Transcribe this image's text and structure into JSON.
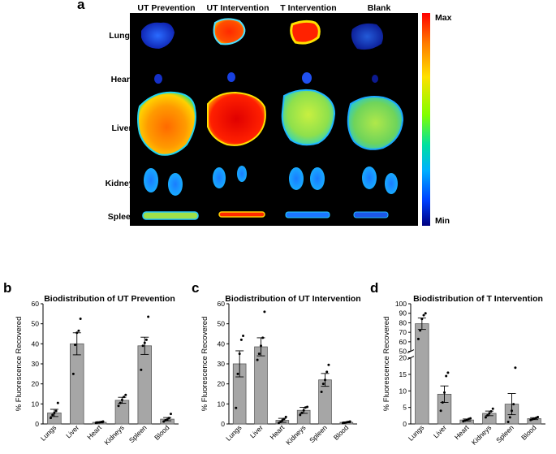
{
  "figure": {
    "panel_a": {
      "letter": "a",
      "columns": [
        "UT Prevention",
        "UT Intervention",
        "T Intervention",
        "Blank"
      ],
      "rows": [
        "Lungs",
        "Heart",
        "Liver",
        "Kidneys",
        "Spleen"
      ],
      "colorbar": {
        "max_label": "Max",
        "min_label": "Min"
      }
    },
    "colors": {
      "bar_fill": "#a6a6a6",
      "bar_stroke": "#5a5a5a",
      "point": "#000000"
    }
  },
  "chart_data": [
    {
      "letter": "b",
      "type": "bar",
      "title": "Biodistribution of UT Prevention",
      "ylabel": "% Fluorescence Recovered",
      "categories": [
        "Lungs",
        "Liver",
        "Heart",
        "Kidneys",
        "Spleen",
        "Blood"
      ],
      "values": [
        5.5,
        40,
        0.8,
        11.8,
        39,
        2.4
      ],
      "errors": [
        1.8,
        5.5,
        0.3,
        1.5,
        4.3,
        0.8
      ],
      "points": [
        [
          3,
          4.5,
          5.5,
          6.5,
          10.5
        ],
        [
          25,
          39.5,
          45.5,
          46.5,
          52.5
        ],
        [
          0.5,
          0.7,
          0.8,
          1,
          1.2
        ],
        [
          9,
          10.5,
          12,
          13.5,
          14.5
        ],
        [
          27,
          39,
          40.5,
          42,
          53.5
        ],
        [
          1.2,
          1.8,
          2.2,
          3,
          5
        ]
      ],
      "yticks": [
        0,
        10,
        20,
        30,
        40,
        50,
        60
      ],
      "ylim": [
        0,
        60
      ]
    },
    {
      "letter": "c",
      "type": "bar",
      "title": "Biodistribution of UT Intervention",
      "ylabel": "% Fluorescence Recovered",
      "categories": [
        "Lungs",
        "Liver",
        "Heart",
        "Kidneys",
        "Spleen",
        "Blood"
      ],
      "values": [
        30,
        38.5,
        1.8,
        6.8,
        22,
        0.8
      ],
      "errors": [
        6.5,
        4.5,
        1,
        1.5,
        3.2,
        0.2
      ],
      "points": [
        [
          8,
          25,
          35,
          42,
          44
        ],
        [
          32,
          35,
          39,
          43,
          56
        ],
        [
          0.5,
          1,
          1.8,
          2.5,
          3.5
        ],
        [
          4.5,
          5.5,
          6.8,
          8.2,
          8.5
        ],
        [
          16,
          20,
          22,
          26,
          29.5
        ],
        [
          0.4,
          0.6,
          0.8,
          1,
          1.2
        ]
      ],
      "yticks": [
        0,
        10,
        20,
        30,
        40,
        50,
        60
      ],
      "ylim": [
        0,
        60
      ]
    },
    {
      "letter": "d",
      "type": "bar",
      "title": "Biodistribution of T Intervention",
      "ylabel": "% Fluorescence Recovered",
      "categories": [
        "Lungs",
        "Liver",
        "Heart",
        "Kidneys",
        "Spleen",
        "Blood"
      ],
      "values": [
        79,
        9,
        1.2,
        3.2,
        6,
        1.6
      ],
      "errors": [
        6,
        2.5,
        0.3,
        0.7,
        3.2,
        0.3
      ],
      "points": [
        [
          63,
          72,
          84,
          88,
          90
        ],
        [
          4,
          6.5,
          9.5,
          14.5,
          15.5
        ],
        [
          0.8,
          1,
          1.2,
          1.5,
          1.7
        ],
        [
          2,
          2.6,
          3.2,
          3.8,
          4.6
        ],
        [
          0.6,
          2,
          4,
          6,
          17
        ],
        [
          1.2,
          1.4,
          1.6,
          1.8,
          2.1
        ]
      ],
      "yticks": [
        0,
        5,
        10,
        15,
        20,
        50,
        60,
        70,
        80,
        90,
        100
      ],
      "ylim": [
        0,
        100
      ],
      "broken_axis": {
        "lower": [
          0,
          20
        ],
        "upper": [
          50,
          100
        ]
      }
    }
  ]
}
